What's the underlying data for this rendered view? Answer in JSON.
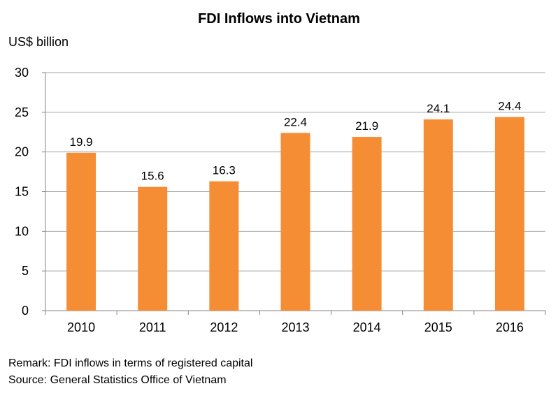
{
  "chart_data": {
    "type": "bar",
    "title": "FDI Inflows into Vietnam",
    "ylabel": "US$ billion",
    "xlabel": "",
    "categories": [
      "2010",
      "2011",
      "2012",
      "2013",
      "2014",
      "2015",
      "2016"
    ],
    "values": [
      19.9,
      15.6,
      16.3,
      22.4,
      21.9,
      24.1,
      24.4
    ],
    "data_labels": [
      "19.9",
      "15.6",
      "16.3",
      "22.4",
      "21.9",
      "24.1",
      "24.4"
    ],
    "ylim": [
      0,
      30
    ],
    "yticks": [
      0,
      5,
      10,
      15,
      20,
      25,
      30
    ],
    "grid": true,
    "bar_color": "#F58D35"
  },
  "notes": {
    "remark": "Remark: FDI inflows in terms of registered capital",
    "source": "Source: General Statistics Office of Vietnam"
  }
}
